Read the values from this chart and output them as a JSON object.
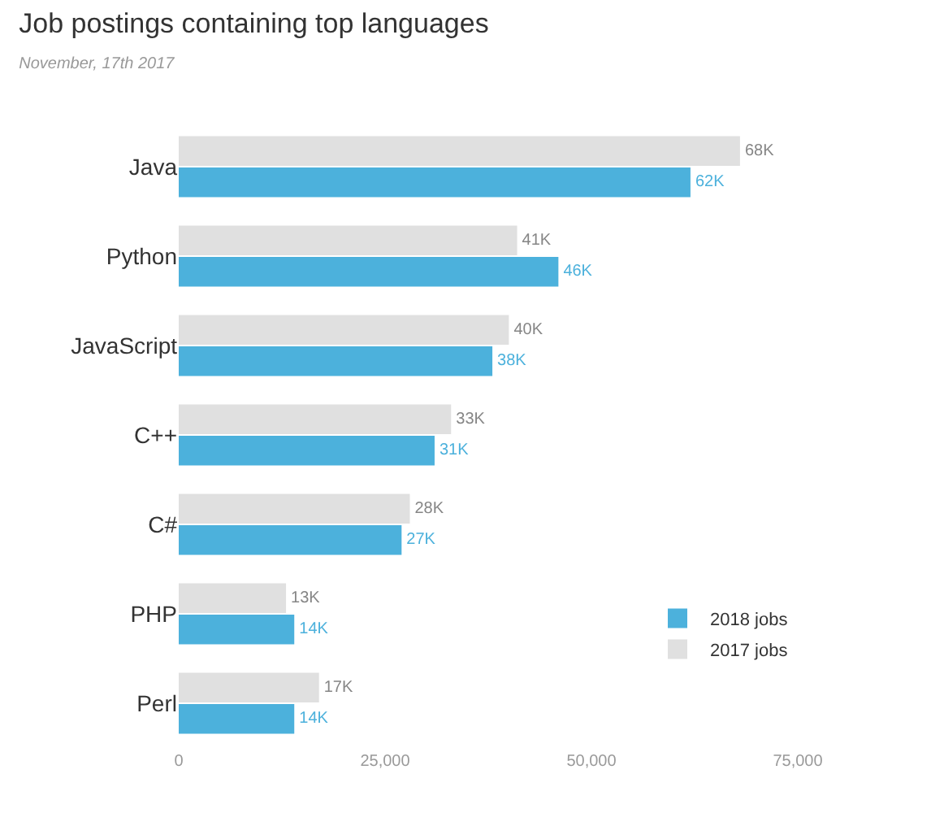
{
  "chart_data": {
    "type": "bar",
    "orientation": "horizontal",
    "title": "Job postings containing top languages",
    "subtitle": "November, 17th 2017",
    "categories": [
      "Java",
      "Python",
      "JavaScript",
      "C++",
      "C#",
      "PHP",
      "Perl"
    ],
    "series": [
      {
        "name": "2017 jobs",
        "color": "#e0e0e0",
        "values": [
          68000,
          41000,
          40000,
          33000,
          28000,
          13000,
          17000
        ],
        "value_labels": [
          "68K",
          "41K",
          "40K",
          "33K",
          "28K",
          "13K",
          "17K"
        ]
      },
      {
        "name": "2018 jobs",
        "color": "#4cb1dc",
        "values": [
          62000,
          46000,
          38000,
          31000,
          27000,
          14000,
          14000
        ],
        "value_labels": [
          "62K",
          "46K",
          "38K",
          "31K",
          "27K",
          "14K",
          "14K"
        ]
      }
    ],
    "xlim": [
      0,
      75000
    ],
    "xticks": [
      0,
      {
        "value": 25000,
        "label": "25,000"
      },
      {
        "value": 50000,
        "label": "50,000"
      },
      {
        "value": 75000,
        "label": "75,000"
      }
    ],
    "legend": "bottom right"
  }
}
